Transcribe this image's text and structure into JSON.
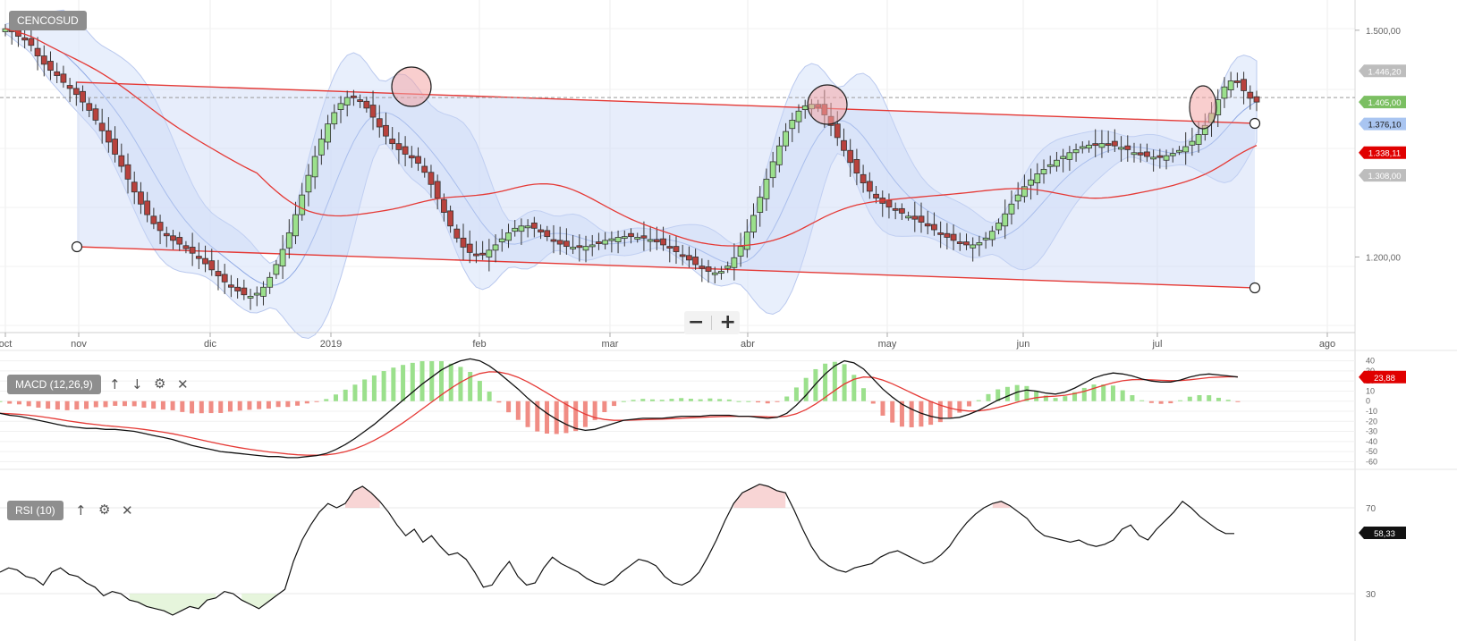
{
  "panels": {
    "main_label": "CENCOSUD",
    "macd_label": "MACD (12,26,9)",
    "rsi_label": "RSI (10)"
  },
  "controls": {
    "up_icon": "arrow-up-icon",
    "down_icon": "arrow-down-icon",
    "settings_icon": "gear-icon",
    "close_icon": "close-icon",
    "zoom_out": "−",
    "zoom_in": "+"
  },
  "colors": {
    "price_up": "#9be08c",
    "price_down": "#b8423d",
    "band_fill": "#dbe6fb",
    "channel": "#e53935",
    "ma": "#e53935",
    "macd_line": "#111111",
    "signal_line": "#e53935",
    "hist_pos": "#9be08c",
    "hist_neg": "#f08c84",
    "rsi_line": "#111111",
    "tag_price": "#7bbf62",
    "tag_blue": "#a9c5f1",
    "tag_red": "#e00000",
    "tag_gray": "#bdbdbd"
  },
  "chart_data": [
    {
      "type": "candlestick",
      "title": "CENCOSUD",
      "x_tick_labels": [
        "oct",
        "nov",
        "dic",
        "2019",
        "feb",
        "mar",
        "abr",
        "may",
        "jun",
        "jul",
        "ago"
      ],
      "y_tick_labels": [
        "1.500,00",
        "1.200,00"
      ],
      "ylim": [
        1100,
        1540
      ],
      "price_tags": [
        {
          "label": "1.446,20",
          "value": 1446.2,
          "style": "gray"
        },
        {
          "label": "1.405,00",
          "value": 1405.0,
          "style": "price"
        },
        {
          "label": "1.376,10",
          "value": 1376.1,
          "style": "blue"
        },
        {
          "label": "1.338,11",
          "value": 1338.11,
          "style": "red"
        },
        {
          "label": "1.308,00",
          "value": 1308.0,
          "style": "gray"
        }
      ],
      "current_price_line": 1411,
      "closes": [
        1502,
        1498,
        1492,
        1487,
        1480,
        1466,
        1455,
        1447,
        1440,
        1431,
        1423,
        1415,
        1405,
        1394,
        1381,
        1367,
        1352,
        1336,
        1320,
        1303,
        1286,
        1270,
        1256,
        1244,
        1235,
        1228,
        1222,
        1217,
        1211,
        1205,
        1198,
        1191,
        1183,
        1175,
        1167,
        1160,
        1155,
        1150,
        1148,
        1152,
        1160,
        1173,
        1190,
        1210,
        1232,
        1256,
        1282,
        1308,
        1333,
        1356,
        1376,
        1391,
        1403,
        1411,
        1412,
        1406,
        1397,
        1385,
        1372,
        1360,
        1350,
        1342,
        1336,
        1331,
        1324,
        1312,
        1296,
        1278,
        1259,
        1241,
        1225,
        1213,
        1206,
        1203,
        1204,
        1209,
        1216,
        1224,
        1232,
        1238,
        1241,
        1241,
        1238,
        1233,
        1227,
        1222,
        1217,
        1214,
        1213,
        1213,
        1214,
        1216,
        1219,
        1222,
        1224,
        1226,
        1227,
        1227,
        1226,
        1225,
        1223,
        1220,
        1216,
        1212,
        1207,
        1202,
        1196,
        1190,
        1185,
        1181,
        1179,
        1181,
        1188,
        1199,
        1214,
        1233,
        1255,
        1279,
        1303,
        1326,
        1347,
        1366,
        1381,
        1393,
        1400,
        1402,
        1398,
        1388,
        1374,
        1358,
        1341,
        1325,
        1311,
        1298,
        1287,
        1278,
        1271,
        1266,
        1262,
        1258,
        1254,
        1250,
        1246,
        1241,
        1236,
        1231,
        1226,
        1222,
        1218,
        1216,
        1216,
        1219,
        1225,
        1234,
        1245,
        1257,
        1270,
        1282,
        1293,
        1302,
        1310,
        1316,
        1322,
        1328,
        1333,
        1338,
        1342,
        1346,
        1348,
        1349,
        1350,
        1349,
        1347,
        1345,
        1342,
        1338,
        1335,
        1333,
        1332,
        1332,
        1334,
        1337,
        1341,
        1346,
        1353,
        1362,
        1374,
        1390,
        1408,
        1425,
        1433,
        1431,
        1420,
        1410,
        1405
      ]
    },
    {
      "type": "bar+line",
      "title": "MACD (12,26,9)",
      "y_tick_labels": [
        "40",
        "30",
        "20",
        "10",
        "0",
        "-10",
        "-20",
        "-30",
        "-40",
        "-50",
        "-60"
      ],
      "ylim": [
        -65,
        45
      ],
      "value_tag": "23,88",
      "macd": [
        -12,
        -14,
        -15,
        -17,
        -19,
        -21,
        -23,
        -25,
        -26,
        -27,
        -27,
        -28,
        -28,
        -29,
        -30,
        -32,
        -34,
        -36,
        -38,
        -41,
        -44,
        -46,
        -48,
        -50,
        -51,
        -52,
        -53,
        -54,
        -55,
        -55,
        -56,
        -56,
        -55,
        -54,
        -52,
        -48,
        -43,
        -37,
        -30,
        -23,
        -15,
        -7,
        1,
        9,
        17,
        24,
        31,
        36,
        40,
        42,
        40,
        35,
        28,
        20,
        12,
        3,
        -5,
        -12,
        -18,
        -23,
        -27,
        -29,
        -28,
        -25,
        -22,
        -19,
        -18,
        -17,
        -17,
        -17,
        -16,
        -15,
        -15,
        -15,
        -14,
        -14,
        -14,
        -15,
        -15,
        -16,
        -17,
        -16,
        -12,
        -4,
        6,
        17,
        27,
        35,
        40,
        38,
        32,
        22,
        12,
        4,
        -3,
        -8,
        -12,
        -15,
        -17,
        -17,
        -16,
        -13,
        -9,
        -4,
        1,
        5,
        9,
        11,
        10,
        8,
        7,
        9,
        13,
        18,
        23,
        26,
        28,
        27,
        25,
        22,
        20,
        19,
        19,
        21,
        24,
        26,
        27,
        26,
        25,
        24
      ]
    },
    {
      "type": "line",
      "title": "RSI (10)",
      "y_tick_labels": [
        "70",
        "30"
      ],
      "ylim": [
        10,
        85
      ],
      "value_tag": "58,33",
      "overbought": 70,
      "oversold": 30,
      "rsi": [
        40,
        42,
        41,
        38,
        37,
        34,
        40,
        42,
        39,
        38,
        35,
        33,
        29,
        31,
        30,
        27,
        26,
        24,
        23,
        22,
        20,
        22,
        24,
        23,
        27,
        28,
        31,
        30,
        27,
        25,
        23,
        26,
        29,
        32,
        45,
        55,
        62,
        68,
        72,
        70,
        72,
        78,
        80,
        77,
        73,
        68,
        62,
        57,
        60,
        54,
        57,
        52,
        48,
        49,
        46,
        40,
        33,
        34,
        40,
        45,
        38,
        34,
        35,
        42,
        47,
        44,
        42,
        40,
        37,
        35,
        34,
        36,
        40,
        43,
        46,
        45,
        43,
        38,
        35,
        34,
        36,
        40,
        47,
        55,
        64,
        72,
        77,
        79,
        81,
        80,
        78,
        77,
        69,
        60,
        52,
        46,
        43,
        41,
        40,
        42,
        43,
        44,
        47,
        49,
        50,
        48,
        46,
        44,
        45,
        48,
        52,
        58,
        63,
        67,
        70,
        72,
        73,
        71,
        68,
        65,
        60,
        57,
        56,
        55,
        54,
        55,
        53,
        52,
        53,
        55,
        60,
        62,
        57,
        55,
        60,
        64,
        68,
        73,
        70,
        66,
        63,
        60,
        58,
        58
      ]
    }
  ]
}
